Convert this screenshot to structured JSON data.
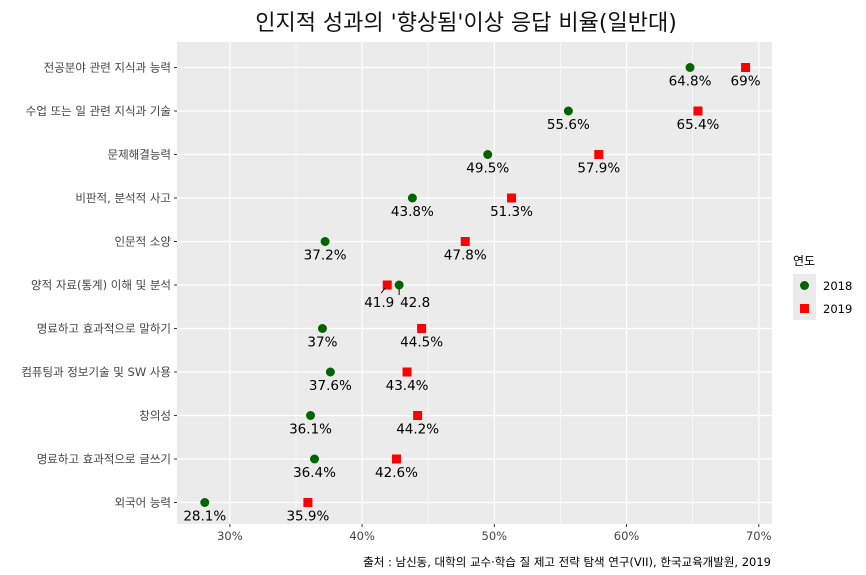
{
  "chart_data": {
    "type": "scatter",
    "title": "인지적 성과의 '향상됨'이상 응답 비율(일반대)",
    "caption": "출처 : 남신동, 대학의 교수·학습 질 제고 전략 탐색 연구(VII), 한국교육개발원, 2019",
    "xlim": [
      26,
      71
    ],
    "x_ticks": [
      30,
      40,
      50,
      60,
      70
    ],
    "x_tick_labels": [
      "30%",
      "40%",
      "50%",
      "60%",
      "70%"
    ],
    "grid": true,
    "legend": {
      "title": "연도",
      "position": "right"
    },
    "categories": [
      "전공분야 관련 지식과 능력",
      "수업 또는 일 관련 지식과 기술",
      "문제해결능력",
      "비판적, 분석적 사고",
      "인문적 소양",
      "양적 자료(통계) 이해 및 분석",
      "명료하고 효과적으로 말하기",
      "컴퓨팅과 정보기술 및 SW 사용",
      "창의성",
      "명료하고 효과적으로 글쓰기",
      "외국어 능력"
    ],
    "series": [
      {
        "name": "2018",
        "color": "#006400",
        "marker": "circle",
        "values": [
          64.8,
          55.6,
          49.5,
          43.8,
          37.2,
          42.8,
          37.0,
          37.6,
          36.1,
          36.4,
          28.1
        ],
        "labels": [
          "64.8%",
          "55.6%",
          "49.5%",
          "43.8%",
          "37.2%",
          "42.8",
          "37%",
          "37.6%",
          "36.1%",
          "36.4%",
          "28.1%"
        ]
      },
      {
        "name": "2019",
        "color": "#ff0000",
        "marker": "square",
        "values": [
          69.0,
          65.4,
          57.9,
          51.3,
          47.8,
          41.9,
          44.5,
          43.4,
          44.2,
          42.6,
          35.9
        ],
        "labels": [
          "69%",
          "65.4%",
          "57.9%",
          "51.3%",
          "47.8%",
          "41.9",
          "44.5%",
          "43.4%",
          "44.2%",
          "42.6%",
          "35.9%"
        ]
      }
    ]
  }
}
